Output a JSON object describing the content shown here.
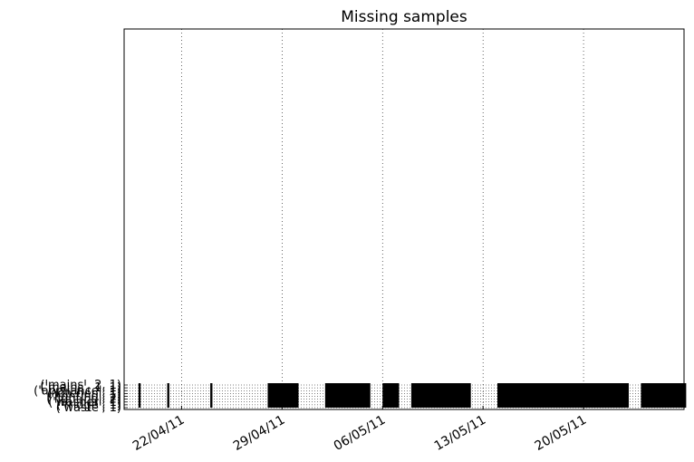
{
  "chart_data": {
    "type": "broken-barh",
    "title": "Missing samples",
    "xlabel": "",
    "ylabel": "",
    "x_tick_format": "DD/MM/YY",
    "x_range": [
      "2011-04-18",
      "2011-05-27"
    ],
    "x_ticks": [
      "22/04/11",
      "29/04/11",
      "06/05/11",
      "13/05/11",
      "20/05/11"
    ],
    "grid": true,
    "series_labels": [
      "('mains', 2, 1)",
      "('mains', 1, 1)",
      "('appliance', 1)",
      "('kitchen', 1)",
      "('lighting', 1)",
      "('lighting', 2)",
      "('washer', 1)",
      "('fridge', 1)",
      "('waste', 1)"
    ],
    "missing_ranges": [
      [
        "2011-04-19",
        "2011-04-19"
      ],
      [
        "2011-04-21",
        "2011-04-21"
      ],
      [
        "2011-04-24",
        "2011-04-24"
      ],
      [
        "2011-04-28",
        "2011-04-30"
      ],
      [
        "2011-05-02",
        "2011-05-05"
      ],
      [
        "2011-05-06",
        "2011-05-07"
      ],
      [
        "2011-05-08",
        "2011-05-12"
      ],
      [
        "2011-05-14",
        "2011-05-23"
      ],
      [
        "2011-05-24",
        "2011-05-27"
      ]
    ]
  }
}
